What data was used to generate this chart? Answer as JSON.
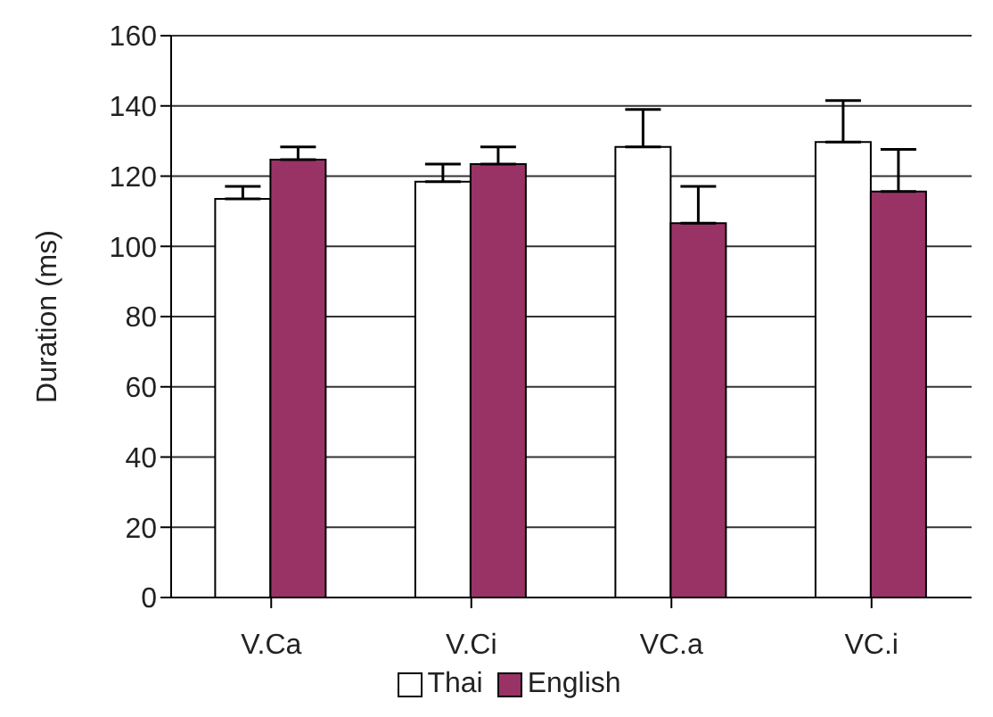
{
  "chart_data": {
    "type": "bar",
    "ylabel": "Duration (ms)",
    "categories": [
      "V.Ca",
      "V.Ci",
      "VC.a",
      "VC.i"
    ],
    "series": [
      {
        "name": "Thai",
        "color": "#ffffff",
        "values": [
          113.5,
          118.4,
          128.3,
          129.7
        ],
        "errors": [
          [
            113.5,
            117.1
          ],
          [
            118.4,
            123.4
          ],
          [
            128.3,
            139
          ],
          [
            129.7,
            141.5
          ]
        ]
      },
      {
        "name": "English",
        "color": "#993366",
        "values": [
          124.7,
          123.4,
          106.6,
          115.6
        ],
        "errors": [
          [
            124.7,
            128.3
          ],
          [
            123.4,
            128.3
          ],
          [
            106.6,
            117.1
          ],
          [
            115.6,
            127.6
          ]
        ]
      }
    ],
    "ylim": [
      0,
      160
    ],
    "yticks": [
      0,
      20,
      40,
      60,
      80,
      100,
      120,
      140,
      160
    ],
    "grid": "y",
    "legend": "bottom"
  }
}
